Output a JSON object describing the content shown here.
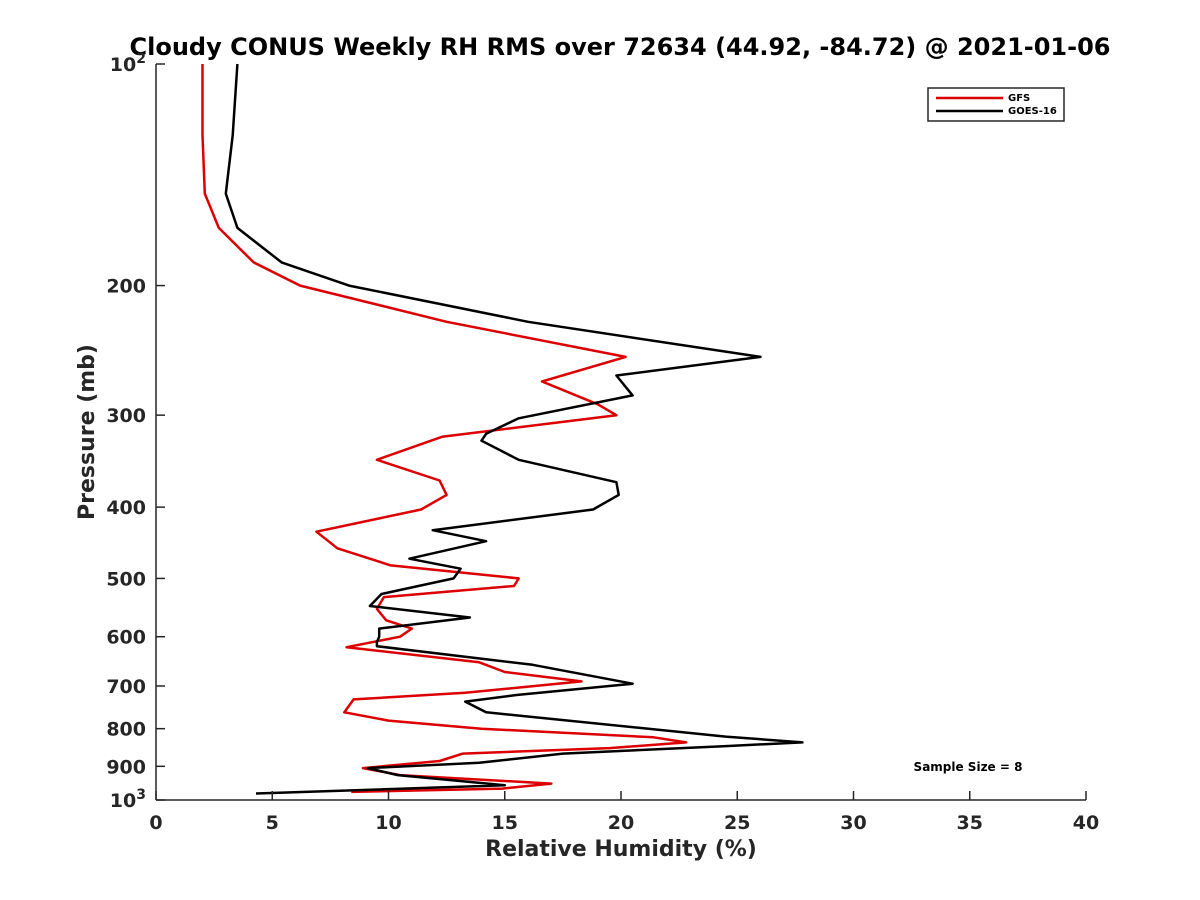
{
  "chart_data": {
    "type": "line",
    "title": "Cloudy CONUS Weekly RH RMS over 72634 (44.92, -84.72) @ 2021-01-06",
    "xlabel": "Relative Humidity (%)",
    "ylabel": "Pressure (mb)",
    "xlim": [
      0,
      40
    ],
    "ylim": [
      100,
      1000
    ],
    "y_scale": "log",
    "y_reversed": true,
    "x_ticks": [
      0,
      5,
      10,
      15,
      20,
      25,
      30,
      35,
      40
    ],
    "x_tick_labels": [
      "0",
      "5",
      "10",
      "15",
      "20",
      "25",
      "30",
      "35",
      "40"
    ],
    "y_ticks": [
      100,
      200,
      300,
      400,
      500,
      600,
      700,
      800,
      900,
      1000
    ],
    "y_tick_labels": [
      "10²",
      "200",
      "300",
      "400",
      "500",
      "600",
      "700",
      "800",
      "900",
      "10³"
    ],
    "grid": false,
    "legend_position": "top-right",
    "annotation": "Sample Size = 8",
    "series": [
      {
        "name": "GFS",
        "color": "#dd0000",
        "points": [
          [
            2.0,
            100
          ],
          [
            2.0,
            125
          ],
          [
            2.1,
            150
          ],
          [
            2.7,
            167
          ],
          [
            4.2,
            186
          ],
          [
            6.2,
            200
          ],
          [
            12.5,
            224
          ],
          [
            20.2,
            250
          ],
          [
            16.6,
            270
          ],
          [
            19.0,
            290
          ],
          [
            19.8,
            300
          ],
          [
            12.3,
            321
          ],
          [
            9.5,
            345
          ],
          [
            12.2,
            368
          ],
          [
            12.5,
            385
          ],
          [
            11.4,
            403
          ],
          [
            6.9,
            432
          ],
          [
            7.8,
            455
          ],
          [
            10.1,
            480
          ],
          [
            15.6,
            500
          ],
          [
            15.4,
            512
          ],
          [
            9.8,
            530
          ],
          [
            9.5,
            550
          ],
          [
            9.9,
            570
          ],
          [
            11.0,
            585
          ],
          [
            10.5,
            600
          ],
          [
            8.2,
            620
          ],
          [
            13.9,
            650
          ],
          [
            15.0,
            670
          ],
          [
            18.3,
            690
          ],
          [
            13.3,
            715
          ],
          [
            8.5,
            730
          ],
          [
            8.1,
            760
          ],
          [
            10.0,
            780
          ],
          [
            14.0,
            800
          ],
          [
            21.4,
            822
          ],
          [
            22.8,
            835
          ],
          [
            19.5,
            850
          ],
          [
            13.2,
            865
          ],
          [
            12.2,
            885
          ],
          [
            8.9,
            905
          ],
          [
            10.5,
            925
          ],
          [
            17.0,
            950
          ],
          [
            14.9,
            965
          ],
          [
            8.4,
            975
          ]
        ]
      },
      {
        "name": "GOES-16",
        "color": "#000000",
        "points": [
          [
            3.5,
            100
          ],
          [
            3.3,
            125
          ],
          [
            3.0,
            150
          ],
          [
            3.5,
            167
          ],
          [
            5.4,
            186
          ],
          [
            8.3,
            200
          ],
          [
            16.0,
            224
          ],
          [
            26.0,
            250
          ],
          [
            19.8,
            265
          ],
          [
            20.5,
            282
          ],
          [
            15.6,
            303
          ],
          [
            14.2,
            318
          ],
          [
            14.0,
            325
          ],
          [
            15.6,
            345
          ],
          [
            19.8,
            370
          ],
          [
            19.9,
            385
          ],
          [
            18.8,
            403
          ],
          [
            11.9,
            430
          ],
          [
            14.2,
            445
          ],
          [
            10.9,
            470
          ],
          [
            13.1,
            485
          ],
          [
            12.8,
            500
          ],
          [
            9.7,
            525
          ],
          [
            9.2,
            545
          ],
          [
            13.5,
            565
          ],
          [
            9.6,
            585
          ],
          [
            9.6,
            600
          ],
          [
            9.5,
            610
          ],
          [
            9.5,
            618
          ],
          [
            16.2,
            655
          ],
          [
            20.5,
            695
          ],
          [
            15.5,
            720
          ],
          [
            13.3,
            735
          ],
          [
            14.2,
            760
          ],
          [
            24.5,
            820
          ],
          [
            27.8,
            835
          ],
          [
            24.4,
            845
          ],
          [
            17.5,
            865
          ],
          [
            13.9,
            890
          ],
          [
            9.1,
            905
          ],
          [
            10.4,
            925
          ],
          [
            15.0,
            955
          ],
          [
            4.3,
            980
          ]
        ]
      }
    ]
  }
}
